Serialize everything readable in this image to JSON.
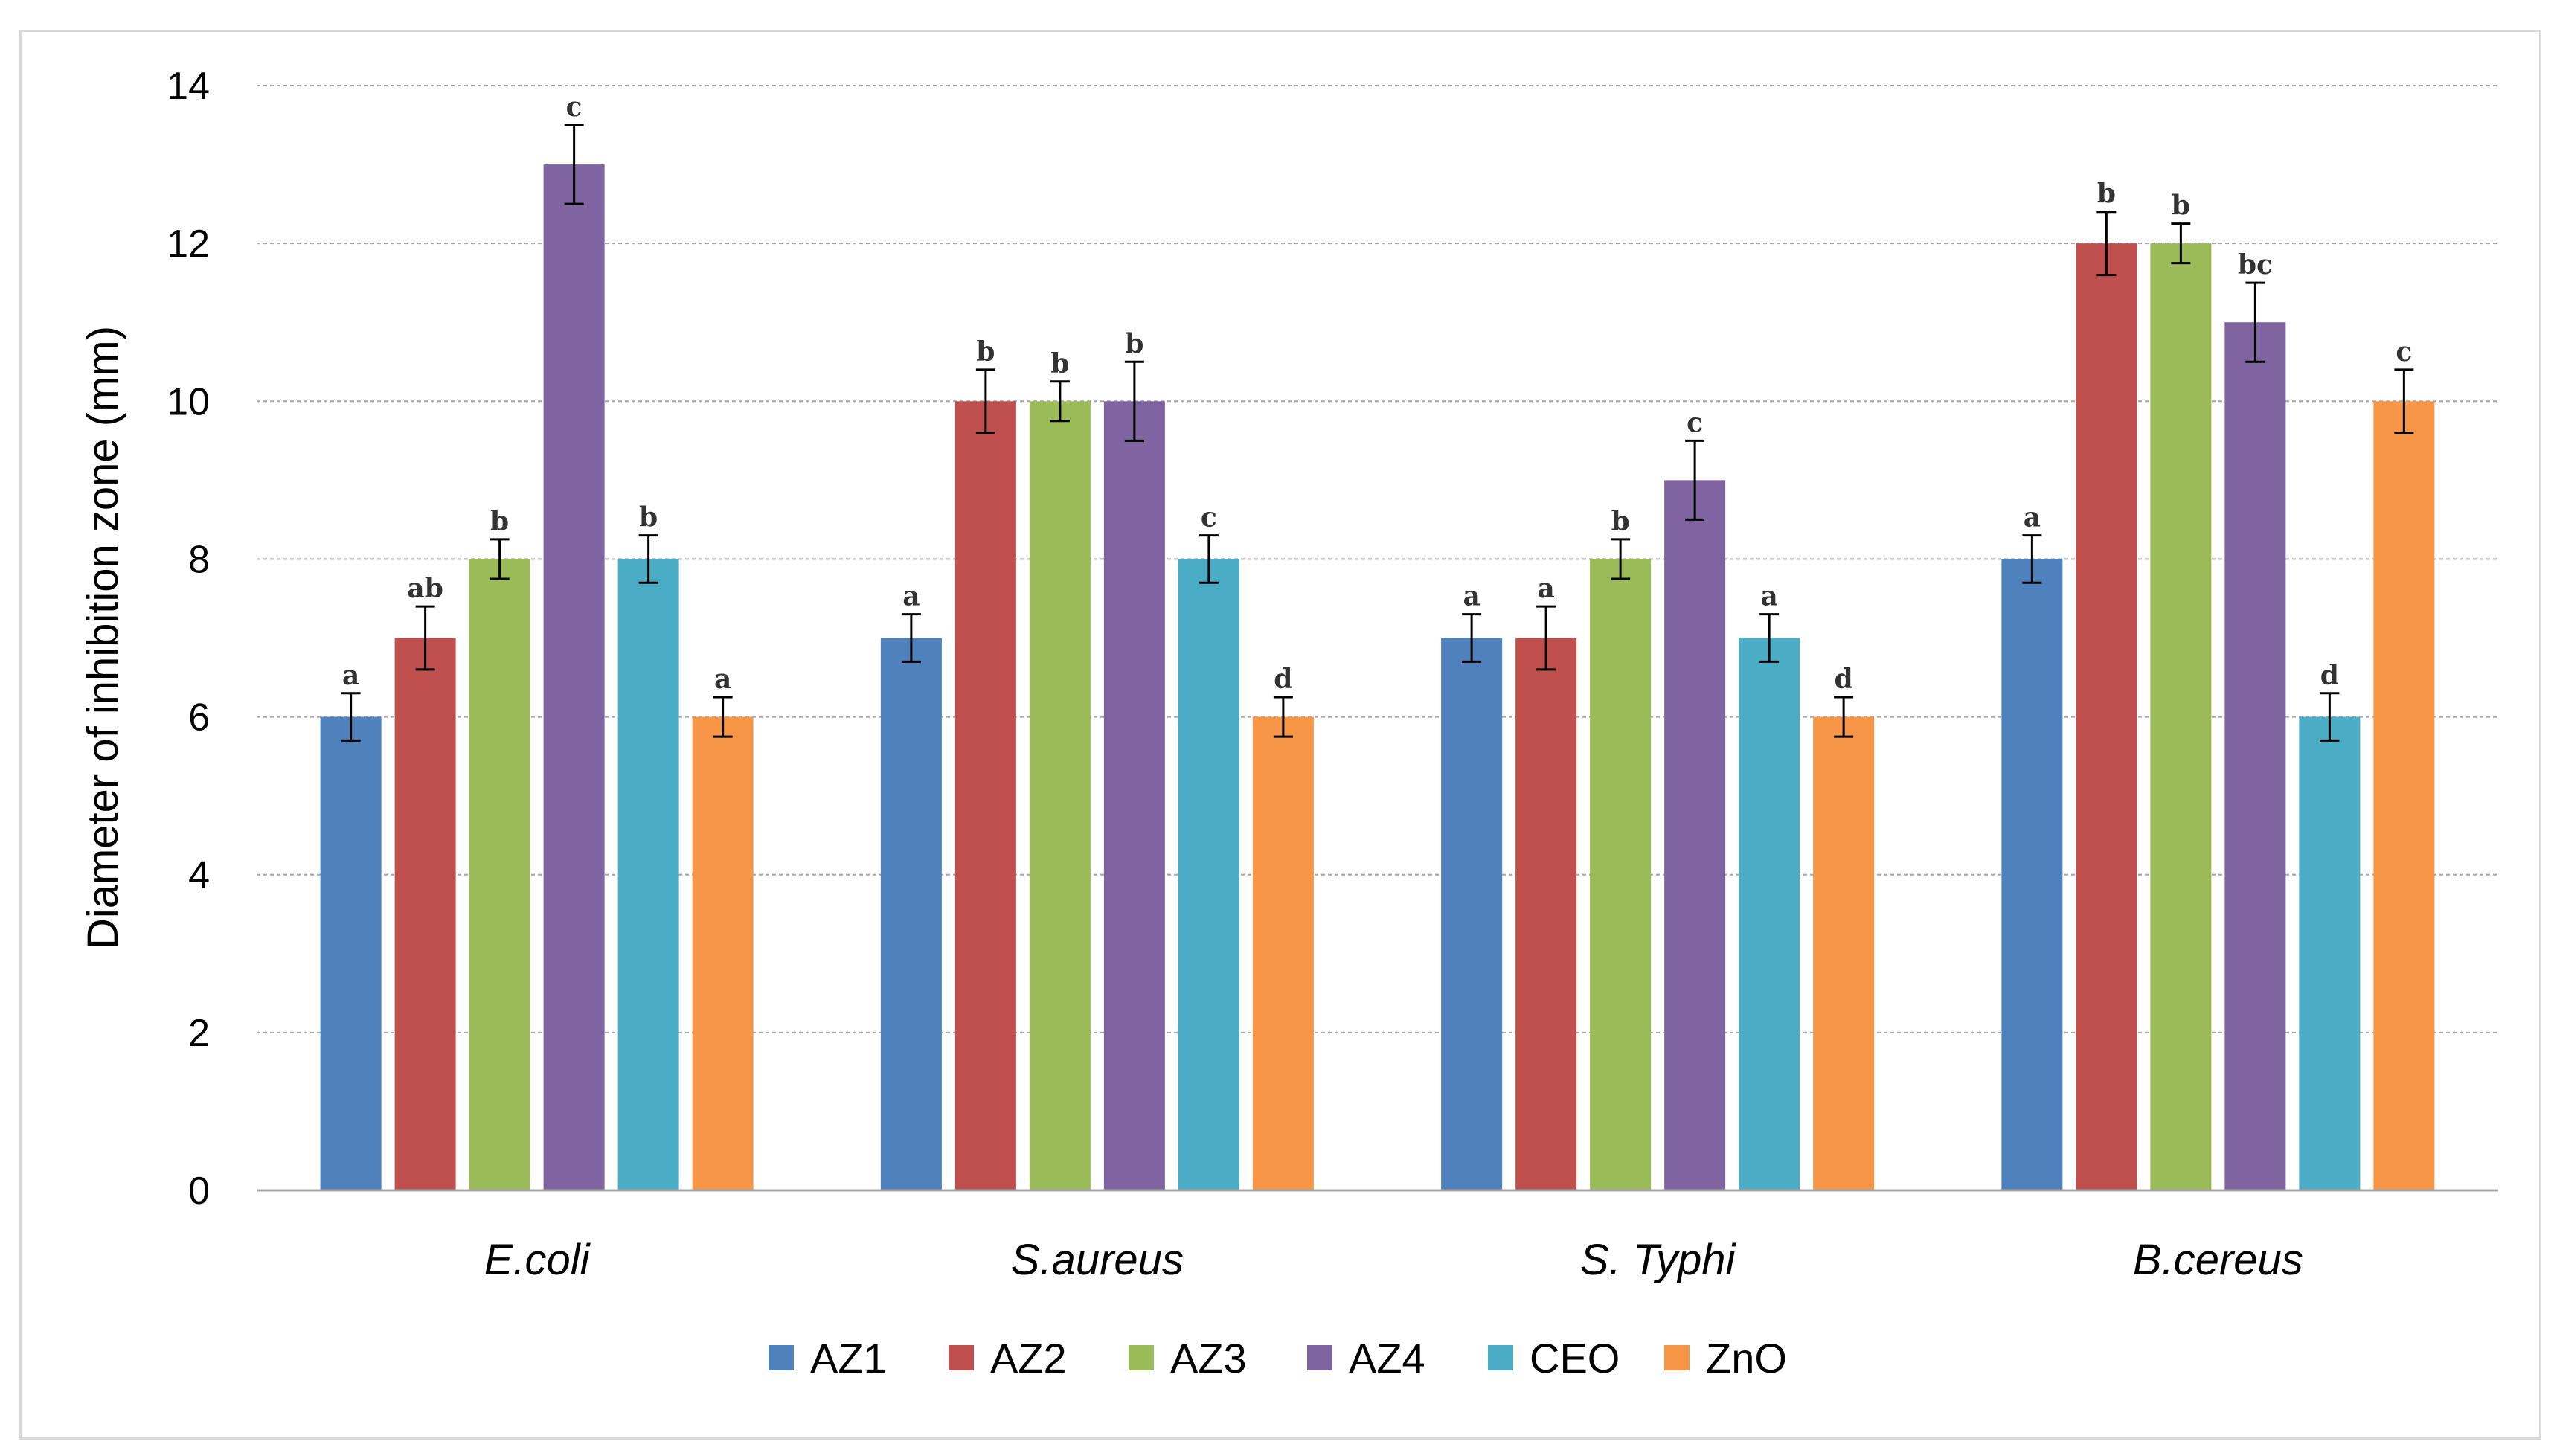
{
  "chart_data": {
    "type": "bar",
    "title": "",
    "xlabel": "",
    "ylabel": "Diameter of inhibition zone (mm)",
    "ylim": [
      0,
      14
    ],
    "yticks": [
      0,
      2,
      4,
      6,
      8,
      10,
      12,
      14
    ],
    "grid": true,
    "legend_position": "bottom",
    "categories": [
      "E.coli",
      "S.aureus",
      "S. Typhi",
      "B.cereus"
    ],
    "series": [
      {
        "name": "AZ1",
        "color": "#4F81BD",
        "values": [
          6,
          7,
          7,
          8
        ],
        "errors": [
          0.3,
          0.3,
          0.3,
          0.3
        ],
        "letters": [
          "a",
          "a",
          "a",
          "a"
        ]
      },
      {
        "name": "AZ2",
        "color": "#C0504D",
        "values": [
          7,
          10,
          7,
          12
        ],
        "errors": [
          0.4,
          0.4,
          0.4,
          0.4
        ],
        "letters": [
          "ab",
          "b",
          "a",
          "b"
        ]
      },
      {
        "name": "AZ3",
        "color": "#9BBB59",
        "values": [
          8,
          10,
          8,
          12
        ],
        "errors": [
          0.25,
          0.25,
          0.25,
          0.25
        ],
        "letters": [
          "b",
          "b",
          "b",
          "b"
        ]
      },
      {
        "name": "AZ4",
        "color": "#8064A2",
        "values": [
          13,
          10,
          9,
          11
        ],
        "errors": [
          0.5,
          0.5,
          0.5,
          0.5
        ],
        "letters": [
          "c",
          "b",
          "c",
          "bc"
        ]
      },
      {
        "name": "CEO",
        "color": "#4BACC6",
        "values": [
          8,
          8,
          7,
          6
        ],
        "errors": [
          0.3,
          0.3,
          0.3,
          0.3
        ],
        "letters": [
          "b",
          "c",
          "a",
          "d"
        ]
      },
      {
        "name": "ZnO",
        "color": "#F79646",
        "values": [
          6,
          6,
          6,
          10
        ],
        "errors": [
          0.25,
          0.25,
          0.25,
          0.4
        ],
        "letters": [
          "a",
          "d",
          "d",
          "c"
        ]
      }
    ]
  }
}
